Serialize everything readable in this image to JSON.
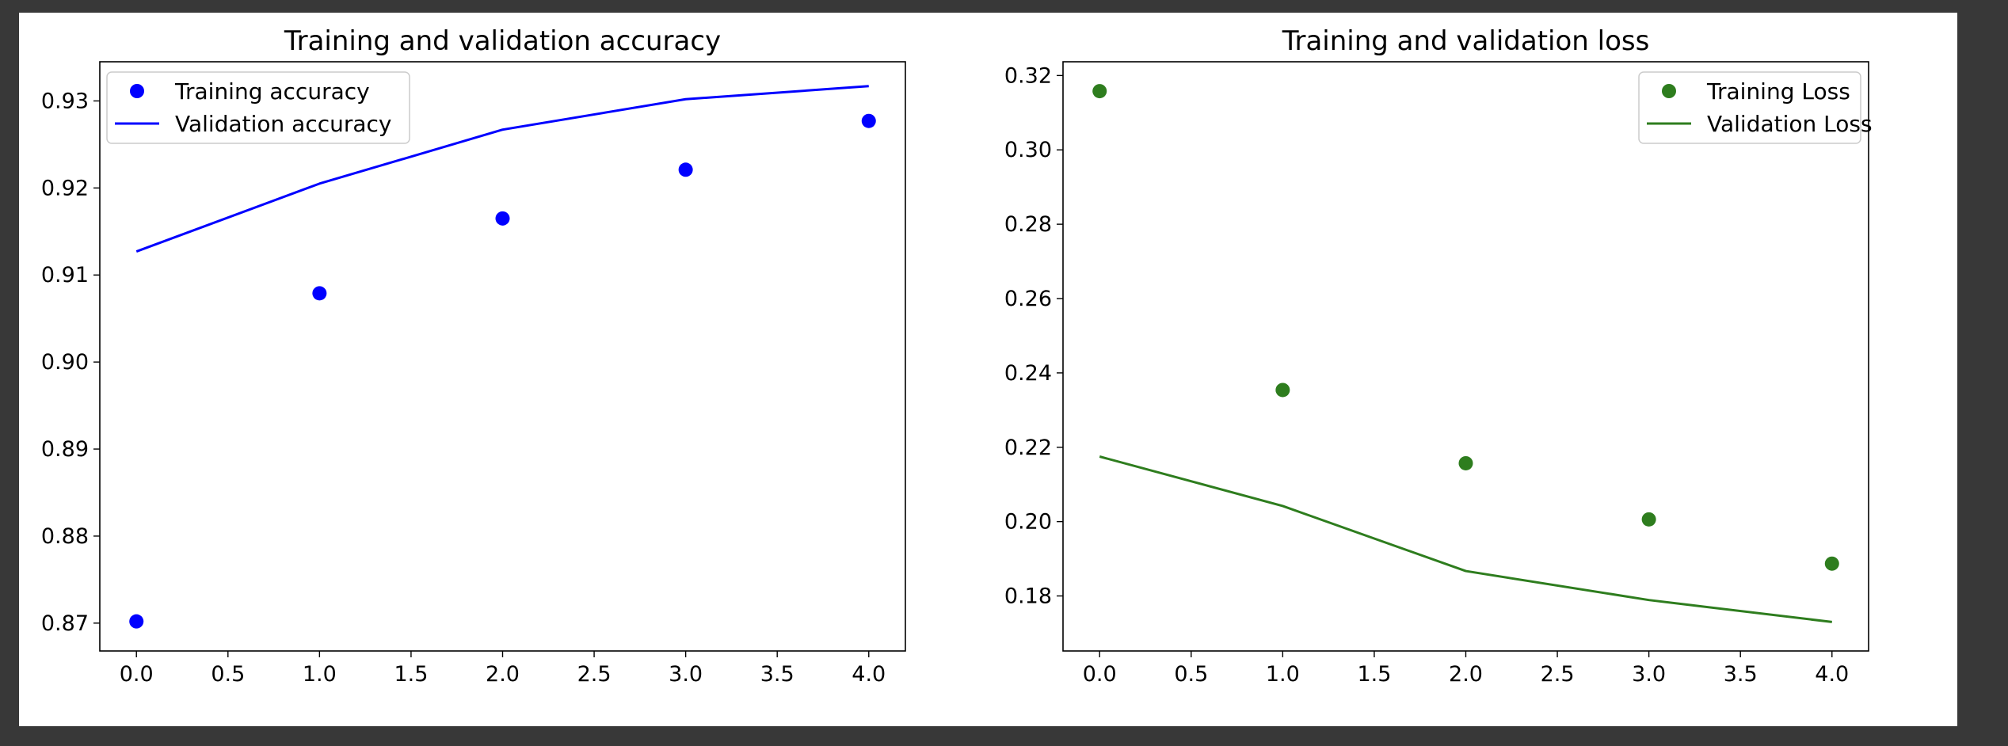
{
  "chart_data": [
    {
      "type": "scatter+line",
      "title": "Training and validation accuracy",
      "xlabel": "",
      "ylabel": "",
      "xlim": [
        -0.2,
        4.2
      ],
      "ylim": [
        0.8668,
        0.9345
      ],
      "xticks": [
        0.0,
        0.5,
        1.0,
        1.5,
        2.0,
        2.5,
        3.0,
        3.5,
        4.0
      ],
      "xtick_labels": [
        "0.0",
        "0.5",
        "1.0",
        "1.5",
        "2.0",
        "2.5",
        "3.0",
        "3.5",
        "4.0"
      ],
      "yticks": [
        0.87,
        0.88,
        0.89,
        0.9,
        0.91,
        0.92,
        0.93
      ],
      "ytick_labels": [
        "0.87",
        "0.88",
        "0.89",
        "0.90",
        "0.91",
        "0.92",
        "0.93"
      ],
      "legend_position": "top-left",
      "grid": false,
      "series": [
        {
          "name": "Training accuracy",
          "style": "points",
          "color": "#0000ff",
          "x": [
            0,
            1,
            2,
            3,
            4
          ],
          "y": [
            0.8702,
            0.9079,
            0.9165,
            0.9221,
            0.9277
          ]
        },
        {
          "name": "Validation accuracy",
          "style": "line",
          "color": "#0000ff",
          "x": [
            0,
            1,
            2,
            3,
            4
          ],
          "y": [
            0.9127,
            0.9205,
            0.9267,
            0.9302,
            0.9317
          ]
        }
      ]
    },
    {
      "type": "scatter+line",
      "title": "Training and validation loss",
      "xlabel": "",
      "ylabel": "",
      "xlim": [
        -0.2,
        4.2
      ],
      "ylim": [
        0.1652,
        0.3237
      ],
      "xticks": [
        0.0,
        0.5,
        1.0,
        1.5,
        2.0,
        2.5,
        3.0,
        3.5,
        4.0
      ],
      "xtick_labels": [
        "0.0",
        "0.5",
        "1.0",
        "1.5",
        "2.0",
        "2.5",
        "3.0",
        "3.5",
        "4.0"
      ],
      "yticks": [
        0.18,
        0.2,
        0.22,
        0.24,
        0.26,
        0.28,
        0.3,
        0.32
      ],
      "ytick_labels": [
        "0.18",
        "0.20",
        "0.22",
        "0.24",
        "0.26",
        "0.28",
        "0.30",
        "0.32"
      ],
      "legend_position": "top-right",
      "grid": false,
      "series": [
        {
          "name": "Training Loss",
          "style": "points",
          "color": "#2e7d1e",
          "x": [
            0,
            1,
            2,
            3,
            4
          ],
          "y": [
            0.3158,
            0.2354,
            0.2157,
            0.2006,
            0.1887
          ]
        },
        {
          "name": "Validation Loss",
          "style": "line",
          "color": "#2e7d1e",
          "x": [
            0,
            1,
            2,
            3,
            4
          ],
          "y": [
            0.2175,
            0.2042,
            0.1867,
            0.1789,
            0.173
          ]
        }
      ]
    }
  ]
}
